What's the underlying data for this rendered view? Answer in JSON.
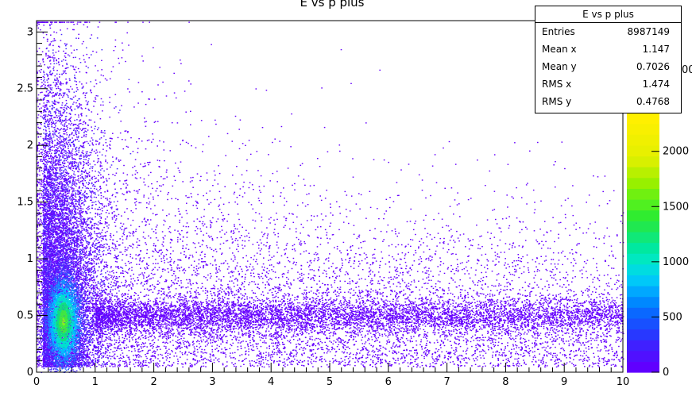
{
  "chart_data": {
    "type": "heatmap",
    "title": "E vs p plus",
    "xlabel": "",
    "ylabel": "",
    "xlim": [
      0,
      10
    ],
    "ylim": [
      0,
      3.1
    ],
    "x_ticks": [
      "0",
      "1",
      "2",
      "3",
      "4",
      "5",
      "6",
      "7",
      "8",
      "9",
      "10"
    ],
    "y_ticks": [
      "0",
      "0.5",
      "1",
      "1.5",
      "2",
      "2.5",
      "3"
    ],
    "z_ticks": [
      "0",
      "500",
      "1000",
      "1500",
      "2000"
    ],
    "z_max": 2350,
    "stats": {
      "title": "E vs p plus",
      "rows": [
        {
          "label": "Entries",
          "value": "8987149"
        },
        {
          "label": "Mean x",
          "value": "1.147"
        },
        {
          "label": "Mean y",
          "value": "0.7026"
        },
        {
          "label": "RMS x",
          "value": "1.474"
        },
        {
          "label": "RMS y",
          "value": "0.4768"
        }
      ]
    },
    "colorbar_label_fragment": "00",
    "hotspot": {
      "x": 0.45,
      "y": 0.45
    },
    "band": {
      "y": 0.5,
      "x_range": [
        1,
        10
      ]
    },
    "palette": [
      "#6600ff",
      "#4a2dff",
      "#2b5bff",
      "#168cff",
      "#00bfff",
      "#00e0d0",
      "#10e080",
      "#40e840",
      "#88f020",
      "#c8f000",
      "#f0f000"
    ]
  }
}
